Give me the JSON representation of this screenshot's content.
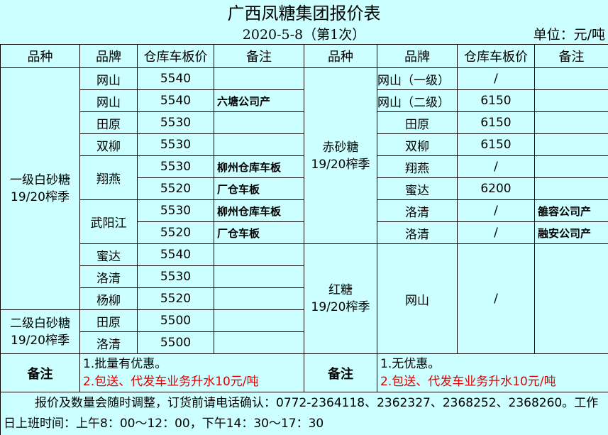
{
  "title": "广西凤糖集团报价表",
  "date": "2020-5-8（第1次）",
  "unit": "单位：元/吨",
  "headers": [
    "品种",
    "品牌",
    "仓库车板价",
    "备注",
    "品种",
    "品牌",
    "仓库车板价",
    "备注"
  ],
  "left": {
    "categories": [
      {
        "name": "一级白砂糖\n19/20榨季",
        "rows": 11
      },
      {
        "name": "二级白砂糖\n19/20榨季",
        "rows": 2
      }
    ],
    "brands": [
      {
        "name": "网山",
        "rows": 1
      },
      {
        "name": "网山",
        "rows": 1
      },
      {
        "name": "田原",
        "rows": 1
      },
      {
        "name": "双柳",
        "rows": 1
      },
      {
        "name": "翔燕",
        "rows": 2
      },
      {
        "name": "武阳江",
        "rows": 2
      },
      {
        "name": "蜜达",
        "rows": 1
      },
      {
        "name": "洛清",
        "rows": 1
      },
      {
        "name": "杨柳",
        "rows": 1
      },
      {
        "name": "田原",
        "rows": 1
      },
      {
        "name": "洛清",
        "rows": 1
      }
    ],
    "prices": [
      "5540",
      "5540",
      "5530",
      "5530",
      "5530",
      "5520",
      "5530",
      "5520",
      "5540",
      "5530",
      "5520",
      "5500",
      "5500"
    ],
    "notes": [
      "",
      "六塘公司产",
      "",
      "",
      "柳州仓库车板",
      "厂仓车板",
      "柳州仓库车板",
      "厂仓车板",
      "",
      "",
      "",
      "",
      ""
    ]
  },
  "right": {
    "categories": [
      {
        "name": "赤砂糖\n19/20榨季",
        "rows": 8
      },
      {
        "name": "红糖\n19/20榨季",
        "rows": 5
      }
    ],
    "brands": [
      {
        "name": "网山（一级）",
        "rows": 1
      },
      {
        "name": "网山（二级）",
        "rows": 1
      },
      {
        "name": "田原",
        "rows": 1
      },
      {
        "name": "双柳",
        "rows": 1
      },
      {
        "name": "翔燕",
        "rows": 1
      },
      {
        "name": "蜜达",
        "rows": 1
      },
      {
        "name": "洛清",
        "rows": 1
      },
      {
        "name": "洛清",
        "rows": 1
      },
      {
        "name": "网山",
        "rows": 5
      }
    ],
    "prices": [
      {
        "v": "/",
        "rows": 1
      },
      {
        "v": "6150",
        "rows": 1
      },
      {
        "v": "6150",
        "rows": 1
      },
      {
        "v": "6150",
        "rows": 1
      },
      {
        "v": "/",
        "rows": 1
      },
      {
        "v": "6200",
        "rows": 1
      },
      {
        "v": "/",
        "rows": 1
      },
      {
        "v": "/",
        "rows": 1
      },
      {
        "v": "/",
        "rows": 5
      }
    ],
    "notes": [
      {
        "v": "",
        "rows": 1
      },
      {
        "v": "",
        "rows": 1
      },
      {
        "v": "",
        "rows": 1
      },
      {
        "v": "",
        "rows": 1
      },
      {
        "v": "",
        "rows": 1
      },
      {
        "v": "",
        "rows": 1
      },
      {
        "v": "雒容公司产",
        "rows": 1
      },
      {
        "v": "融安公司产",
        "rows": 1
      },
      {
        "v": "",
        "rows": 5
      }
    ]
  },
  "remarks": {
    "label": "备注",
    "left": [
      "1.批量有优惠。",
      "2.包送、代发车业务升水10元/吨"
    ],
    "right": [
      "1.无优惠。",
      "2.包送、代发车业务升水10元/吨"
    ]
  },
  "footer": "报价及数量会随时调整，订货前请电话确认：0772-2364118、2362327、2368252、2368260。工作日上班时间：上午8：00～12：00，下午14：30～17：30",
  "colors": {
    "background": "#ccffff",
    "highlight": "#e00000"
  }
}
